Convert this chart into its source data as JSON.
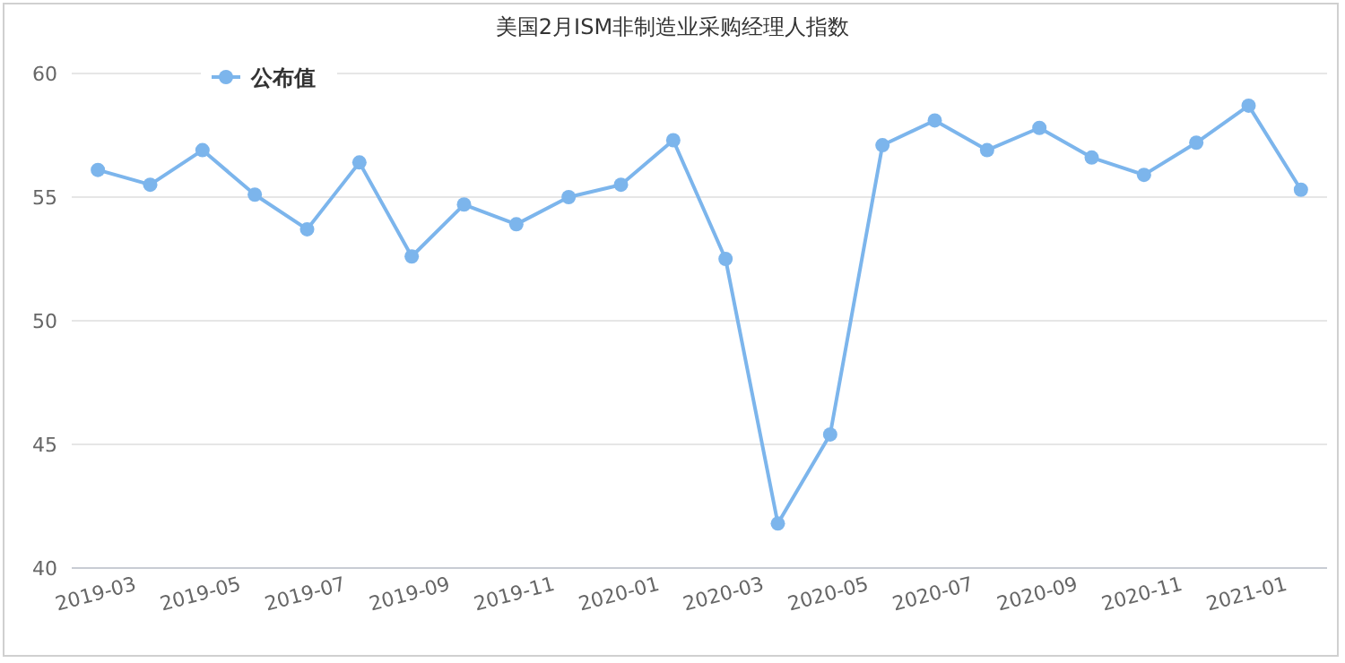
{
  "chart_data": {
    "type": "line",
    "title": "美国2月ISM非制造业采购经理人指数",
    "categories": [
      "2019-03",
      null,
      "2019-05",
      null,
      "2019-07",
      null,
      "2019-09",
      null,
      "2019-11",
      null,
      "2020-01",
      null,
      "2020-03",
      null,
      "2020-05",
      null,
      "2020-07",
      null,
      "2020-09",
      null,
      "2020-11",
      null,
      "2021-01",
      null
    ],
    "series": [
      {
        "name": "公布值",
        "color": "#7cb5ec",
        "values": [
          56.1,
          55.5,
          56.9,
          55.1,
          53.7,
          56.4,
          52.6,
          54.7,
          53.9,
          55.0,
          55.5,
          57.3,
          52.5,
          41.8,
          45.4,
          57.1,
          58.1,
          56.9,
          57.8,
          56.6,
          55.9,
          57.2,
          58.7,
          55.3
        ]
      }
    ],
    "ylim": [
      40,
      60
    ],
    "yticks": [
      40,
      45,
      50,
      55,
      60
    ],
    "grid": "y",
    "legend": "top left",
    "marker": "circle"
  }
}
